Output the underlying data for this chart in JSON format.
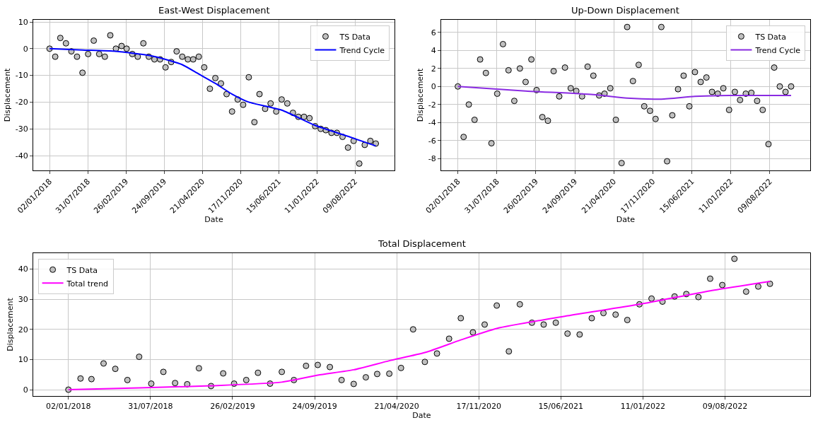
{
  "chart_data": [
    {
      "type": "scatter",
      "title": "East-West Displacement",
      "xlabel": "Date",
      "ylabel": "Displacement",
      "grid": true,
      "legend": "top right",
      "x": [
        "2018-01-02",
        "2018-02-02",
        "2018-03-02",
        "2018-04-02",
        "2018-05-02",
        "2018-06-02",
        "2018-07-02",
        "2018-08-02",
        "2018-09-02",
        "2018-10-02",
        "2018-11-02",
        "2018-12-02",
        "2019-01-02",
        "2019-02-02",
        "2019-03-02",
        "2019-04-02",
        "2019-05-02",
        "2019-06-02",
        "2019-07-02",
        "2019-08-02",
        "2019-09-02",
        "2019-10-02",
        "2019-11-02",
        "2019-12-02",
        "2020-01-02",
        "2020-02-02",
        "2020-03-02",
        "2020-04-02",
        "2020-05-02",
        "2020-06-02",
        "2020-07-02",
        "2020-08-02",
        "2020-09-02",
        "2020-10-02",
        "2020-11-02",
        "2020-12-02",
        "2021-01-02",
        "2021-02-02",
        "2021-03-02",
        "2021-04-02",
        "2021-05-02",
        "2021-06-02",
        "2021-07-02",
        "2021-08-02",
        "2021-09-02",
        "2021-10-02",
        "2021-11-02",
        "2021-12-02",
        "2022-01-02",
        "2022-02-02",
        "2022-03-02",
        "2022-04-02",
        "2022-05-02",
        "2022-06-02",
        "2022-07-02",
        "2022-08-02",
        "2022-09-02",
        "2022-10-02",
        "2022-11-02",
        "2022-12-02"
      ],
      "xlim": [
        "2017-10-04",
        "2023-03-15"
      ],
      "xticks": [
        {
          "value": "2018-01-02",
          "label": "02/01/2018"
        },
        {
          "value": "2018-07-31",
          "label": "31/07/2018"
        },
        {
          "value": "2019-02-26",
          "label": "26/02/2019"
        },
        {
          "value": "2019-09-24",
          "label": "24/09/2019"
        },
        {
          "value": "2020-04-21",
          "label": "21/04/2020"
        },
        {
          "value": "2020-11-17",
          "label": "17/11/2020"
        },
        {
          "value": "2021-06-15",
          "label": "15/06/2021"
        },
        {
          "value": "2022-01-11",
          "label": "11/01/2022"
        },
        {
          "value": "2022-08-09",
          "label": "09/08/2022"
        }
      ],
      "ylim": [
        -45.5,
        10.8
      ],
      "yticks": [
        -40,
        -30,
        -20,
        -10,
        0,
        10
      ],
      "series": [
        {
          "name": "TS Data",
          "marker": "circle",
          "color": "#c0c0c0",
          "values": [
            0,
            -3,
            4,
            2,
            -1,
            -3,
            -9,
            -2,
            3,
            -2,
            -3,
            5,
            0,
            1,
            0,
            -2,
            -3,
            2,
            -3,
            -4,
            -4,
            -7,
            -5,
            -1,
            -3,
            -4,
            -4,
            -3,
            -7,
            -15,
            -11,
            -13,
            -17,
            -23.5,
            -19,
            -21,
            -10.7,
            -27.5,
            -17,
            -22.5,
            -20.5,
            -23.5,
            -19,
            -20.5,
            -24,
            -25.5,
            -25.5,
            -26,
            -29,
            -30,
            -30.5,
            -31.5,
            -31.5,
            -33,
            -37,
            -34.5,
            -43,
            -36,
            -34.5,
            -35.5
          ]
        },
        {
          "name": "Trend Cycle",
          "type": "line",
          "color": "#0000ff",
          "x": [
            "2018-01-02",
            "2018-07-02",
            "2019-01-02",
            "2019-07-02",
            "2019-10-02",
            "2020-01-02",
            "2020-04-02",
            "2020-07-02",
            "2020-10-02",
            "2021-01-02",
            "2021-07-02",
            "2022-01-02",
            "2022-07-02",
            "2022-12-02"
          ],
          "values": [
            0,
            -0.5,
            -1,
            -2.5,
            -4,
            -6,
            -9.5,
            -13,
            -17,
            -20,
            -23,
            -28.7,
            -32.8,
            -36.4
          ]
        }
      ]
    },
    {
      "type": "scatter",
      "title": "Up-Down Displacement",
      "xlabel": "Date",
      "ylabel": "Displacement",
      "grid": true,
      "legend": "top right",
      "x": [
        "2018-01-02",
        "2018-02-02",
        "2018-03-02",
        "2018-04-02",
        "2018-05-02",
        "2018-06-02",
        "2018-07-02",
        "2018-08-02",
        "2018-09-02",
        "2018-10-02",
        "2018-11-02",
        "2018-12-02",
        "2019-01-02",
        "2019-02-02",
        "2019-03-02",
        "2019-04-02",
        "2019-05-02",
        "2019-06-02",
        "2019-07-02",
        "2019-08-02",
        "2019-09-02",
        "2019-10-02",
        "2019-11-02",
        "2019-12-02",
        "2020-01-02",
        "2020-02-02",
        "2020-03-02",
        "2020-04-02",
        "2020-05-02",
        "2020-06-02",
        "2020-07-02",
        "2020-08-02",
        "2020-09-02",
        "2020-10-02",
        "2020-11-02",
        "2020-12-02",
        "2021-01-02",
        "2021-02-02",
        "2021-03-02",
        "2021-04-02",
        "2021-05-02",
        "2021-06-02",
        "2021-07-02",
        "2021-08-02",
        "2021-09-02",
        "2021-10-02",
        "2021-11-02",
        "2021-12-02",
        "2022-01-02",
        "2022-02-02",
        "2022-03-02",
        "2022-04-02",
        "2022-05-02",
        "2022-06-02",
        "2022-07-02",
        "2022-08-02",
        "2022-09-02",
        "2022-10-02",
        "2022-11-02",
        "2022-12-02"
      ],
      "xlim": [
        "2017-10-04",
        "2023-03-15"
      ],
      "xticks": [
        {
          "value": "2018-01-02",
          "label": "02/01/2018"
        },
        {
          "value": "2018-07-31",
          "label": "31/07/2018"
        },
        {
          "value": "2019-02-26",
          "label": "26/02/2019"
        },
        {
          "value": "2019-09-24",
          "label": "24/09/2019"
        },
        {
          "value": "2020-04-21",
          "label": "21/04/2020"
        },
        {
          "value": "2020-11-17",
          "label": "17/11/2020"
        },
        {
          "value": "2021-06-15",
          "label": "15/06/2021"
        },
        {
          "value": "2022-01-11",
          "label": "11/01/2022"
        },
        {
          "value": "2022-08-09",
          "label": "09/08/2022"
        }
      ],
      "ylim": [
        -9.3,
        7.4
      ],
      "yticks": [
        -8,
        -6,
        -4,
        -2,
        0,
        2,
        4,
        6
      ],
      "series": [
        {
          "name": "TS Data",
          "marker": "circle",
          "color": "#c0c0c0",
          "values": [
            0,
            -5.6,
            -2,
            -3.7,
            3,
            1.5,
            -6.3,
            -0.8,
            4.7,
            1.8,
            -1.6,
            2,
            0.5,
            3,
            -0.4,
            -3.4,
            -3.8,
            1.7,
            -1.1,
            2.1,
            -0.2,
            -0.5,
            -1.1,
            2.2,
            1.2,
            -1,
            -0.8,
            -0.2,
            -3.7,
            -8.5,
            6.6,
            0.6,
            2.4,
            -2.2,
            -2.7,
            -3.6,
            6.6,
            -8.3,
            -3.2,
            -0.3,
            1.2,
            -2.2,
            1.6,
            0.5,
            1,
            -0.6,
            -0.8,
            -0.2,
            -2.6,
            -0.6,
            -1.5,
            -0.8,
            -0.7,
            -1.6,
            -2.6,
            -6.4,
            2.1,
            0,
            -0.6,
            0
          ]
        },
        {
          "name": "Trend Cycle",
          "type": "line",
          "color": "#8a2be2",
          "x": [
            "2018-01-02",
            "2019-01-02",
            "2020-01-02",
            "2020-07-02",
            "2021-01-02",
            "2021-07-02",
            "2022-01-02",
            "2022-07-02",
            "2022-12-02"
          ],
          "values": [
            0,
            -0.5,
            -0.9,
            -1.3,
            -1.4,
            -1.1,
            -1,
            -1,
            -1
          ]
        }
      ]
    },
    {
      "type": "scatter",
      "title": "Total Displacement",
      "xlabel": "Date",
      "ylabel": "Displacement",
      "grid": true,
      "legend": "top left",
      "x": [
        "2018-01-02",
        "2018-02-02",
        "2018-03-02",
        "2018-04-02",
        "2018-05-02",
        "2018-06-02",
        "2018-07-02",
        "2018-08-02",
        "2018-09-02",
        "2018-10-02",
        "2018-11-02",
        "2018-12-02",
        "2019-01-02",
        "2019-02-02",
        "2019-03-02",
        "2019-04-02",
        "2019-05-02",
        "2019-06-02",
        "2019-07-02",
        "2019-08-02",
        "2019-09-02",
        "2019-10-02",
        "2019-11-02",
        "2019-12-02",
        "2020-01-02",
        "2020-02-02",
        "2020-03-02",
        "2020-04-02",
        "2020-05-02",
        "2020-06-02",
        "2020-07-02",
        "2020-08-02",
        "2020-09-02",
        "2020-10-02",
        "2020-11-02",
        "2020-12-02",
        "2021-01-02",
        "2021-02-02",
        "2021-03-02",
        "2021-04-02",
        "2021-05-02",
        "2021-06-02",
        "2021-07-02",
        "2021-08-02",
        "2021-09-02",
        "2021-10-02",
        "2021-11-02",
        "2021-12-02",
        "2022-01-02",
        "2022-02-02",
        "2022-03-02",
        "2022-04-02",
        "2022-05-02",
        "2022-06-02",
        "2022-07-02",
        "2022-08-02",
        "2022-09-02",
        "2022-10-02",
        "2022-11-02",
        "2022-12-02"
      ],
      "xlim": [
        "2017-10-04",
        "2023-03-15"
      ],
      "xticks": [
        {
          "value": "2018-01-02",
          "label": "02/01/2018"
        },
        {
          "value": "2018-07-31",
          "label": "31/07/2018"
        },
        {
          "value": "2019-02-26",
          "label": "26/02/2019"
        },
        {
          "value": "2019-09-24",
          "label": "24/09/2019"
        },
        {
          "value": "2020-04-21",
          "label": "21/04/2020"
        },
        {
          "value": "2020-11-17",
          "label": "17/11/2020"
        },
        {
          "value": "2021-06-15",
          "label": "15/06/2021"
        },
        {
          "value": "2022-01-11",
          "label": "11/01/2022"
        },
        {
          "value": "2022-08-09",
          "label": "09/08/2022"
        }
      ],
      "ylim": [
        -2.1,
        45.3
      ],
      "yticks": [
        0,
        10,
        20,
        30,
        40
      ],
      "series": [
        {
          "name": "TS Data",
          "marker": "circle",
          "color": "#c0c0c0",
          "values": [
            0,
            3.7,
            3.5,
            8.7,
            6.9,
            3.2,
            10.9,
            2,
            5.9,
            2.2,
            1.8,
            7.1,
            1.2,
            5.4,
            2,
            3.2,
            5.6,
            2,
            5.9,
            3.2,
            7.9,
            8.2,
            7.5,
            3.2,
            1.9,
            4.1,
            5.2,
            5.3,
            7.2,
            20,
            9.2,
            12,
            16.9,
            23.7,
            19,
            21.6,
            27.9,
            12.7,
            28.3,
            22.2,
            21.6,
            22.2,
            18.6,
            18.3,
            23.7,
            25.4,
            24.9,
            23.1,
            28.3,
            30.2,
            29.2,
            30.9,
            31.7,
            30.7,
            36.8,
            34.7,
            43.4,
            32.5,
            34.2,
            35.1
          ]
        },
        {
          "name": "Total trend",
          "type": "line",
          "color": "#ff00ff",
          "x": [
            "2018-01-02",
            "2018-07-02",
            "2019-01-02",
            "2019-07-02",
            "2019-10-02",
            "2020-01-02",
            "2020-04-02",
            "2020-07-02",
            "2020-10-02",
            "2021-01-02",
            "2021-07-02",
            "2022-01-02",
            "2022-07-02",
            "2022-12-02"
          ],
          "values": [
            0,
            0.6,
            1.3,
            2.5,
            4.8,
            6.6,
            9.6,
            12.3,
            16.5,
            20.3,
            24.5,
            28.3,
            32.8,
            35.9
          ]
        }
      ]
    }
  ]
}
